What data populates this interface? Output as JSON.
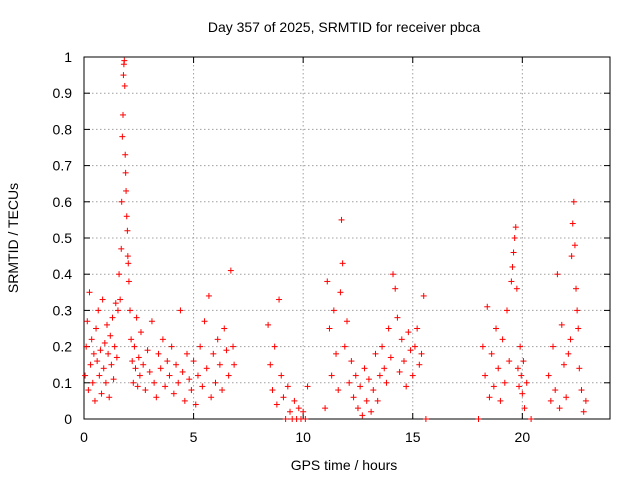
{
  "chart_data": {
    "type": "scatter",
    "title": "Day 357 of 2025, SRMTID for receiver pbca",
    "xlabel": "GPS time / hours",
    "ylabel": "SRMTID / TECUs",
    "xlim": [
      0,
      24
    ],
    "ylim": [
      0,
      1
    ],
    "grid": true,
    "marker": "+",
    "color": "#ff0000",
    "x_ticks": [
      0,
      5,
      10,
      15,
      20
    ],
    "x_tick_labels": [
      "0",
      "5",
      "10",
      "15",
      "20"
    ],
    "y_ticks": [
      0,
      0.1,
      0.2,
      0.3,
      0.4,
      0.5,
      0.6,
      0.7,
      0.8,
      0.9,
      1
    ],
    "y_tick_labels": [
      "0",
      "0.1",
      "0.2",
      "0.3",
      "0.4",
      "0.5",
      "0.6",
      "0.7",
      "0.8",
      "0.9",
      "1"
    ],
    "series": [
      {
        "name": "SRMTID",
        "points": [
          [
            0.05,
            0.12
          ],
          [
            0.1,
            0.2
          ],
          [
            0.15,
            0.27
          ],
          [
            0.2,
            0.08
          ],
          [
            0.25,
            0.35
          ],
          [
            0.3,
            0.15
          ],
          [
            0.35,
            0.22
          ],
          [
            0.4,
            0.1
          ],
          [
            0.45,
            0.18
          ],
          [
            0.5,
            0.05
          ],
          [
            0.55,
            0.25
          ],
          [
            0.6,
            0.16
          ],
          [
            0.65,
            0.3
          ],
          [
            0.7,
            0.12
          ],
          [
            0.75,
            0.19
          ],
          [
            0.8,
            0.07
          ],
          [
            0.85,
            0.33
          ],
          [
            0.9,
            0.14
          ],
          [
            0.95,
            0.21
          ],
          [
            1.0,
            0.1
          ],
          [
            1.05,
            0.26
          ],
          [
            1.1,
            0.18
          ],
          [
            1.15,
            0.06
          ],
          [
            1.2,
            0.23
          ],
          [
            1.25,
            0.15
          ],
          [
            1.3,
            0.28
          ],
          [
            1.35,
            0.11
          ],
          [
            1.4,
            0.2
          ],
          [
            1.45,
            0.32
          ],
          [
            1.5,
            0.17
          ],
          [
            1.55,
            0.3
          ],
          [
            1.6,
            0.4
          ],
          [
            1.65,
            0.33
          ],
          [
            1.7,
            0.47
          ],
          [
            1.72,
            0.6
          ],
          [
            1.75,
            0.78
          ],
          [
            1.78,
            0.84
          ],
          [
            1.8,
            0.95
          ],
          [
            1.82,
            0.98
          ],
          [
            1.84,
            0.99
          ],
          [
            1.86,
            0.92
          ],
          [
            1.88,
            0.73
          ],
          [
            1.9,
            0.68
          ],
          [
            1.92,
            0.63
          ],
          [
            1.95,
            0.56
          ],
          [
            1.98,
            0.52
          ],
          [
            2.0,
            0.45
          ],
          [
            2.02,
            0.43
          ],
          [
            2.05,
            0.38
          ],
          [
            2.1,
            0.3
          ],
          [
            2.15,
            0.22
          ],
          [
            2.2,
            0.16
          ],
          [
            2.25,
            0.1
          ],
          [
            2.3,
            0.2
          ],
          [
            2.35,
            0.14
          ],
          [
            2.4,
            0.28
          ],
          [
            2.45,
            0.09
          ],
          [
            2.5,
            0.17
          ],
          [
            2.55,
            0.12
          ],
          [
            2.6,
            0.24
          ],
          [
            2.7,
            0.15
          ],
          [
            2.8,
            0.08
          ],
          [
            2.9,
            0.19
          ],
          [
            3.0,
            0.13
          ],
          [
            3.1,
            0.27
          ],
          [
            3.2,
            0.1
          ],
          [
            3.3,
            0.06
          ],
          [
            3.4,
            0.18
          ],
          [
            3.5,
            0.14
          ],
          [
            3.6,
            0.22
          ],
          [
            3.7,
            0.09
          ],
          [
            3.8,
            0.16
          ],
          [
            3.9,
            0.12
          ],
          [
            4.0,
            0.2
          ],
          [
            4.1,
            0.07
          ],
          [
            4.2,
            0.15
          ],
          [
            4.3,
            0.1
          ],
          [
            4.4,
            0.3
          ],
          [
            4.5,
            0.13
          ],
          [
            4.6,
            0.05
          ],
          [
            4.7,
            0.18
          ],
          [
            4.8,
            0.11
          ],
          [
            4.9,
            0.08
          ],
          [
            5.0,
            0.16
          ],
          [
            5.1,
            0.04
          ],
          [
            5.2,
            0.12
          ],
          [
            5.3,
            0.2
          ],
          [
            5.4,
            0.09
          ],
          [
            5.5,
            0.27
          ],
          [
            5.6,
            0.14
          ],
          [
            5.7,
            0.34
          ],
          [
            5.8,
            0.06
          ],
          [
            5.9,
            0.18
          ],
          [
            6.0,
            0.1
          ],
          [
            6.1,
            0.22
          ],
          [
            6.2,
            0.15
          ],
          [
            6.3,
            0.08
          ],
          [
            6.4,
            0.25
          ],
          [
            6.5,
            0.19
          ],
          [
            6.6,
            0.12
          ],
          [
            6.7,
            0.41
          ],
          [
            6.8,
            0.2
          ],
          [
            6.85,
            0.15
          ],
          [
            8.4,
            0.26
          ],
          [
            8.5,
            0.15
          ],
          [
            8.6,
            0.08
          ],
          [
            8.7,
            0.2
          ],
          [
            8.8,
            0.04
          ],
          [
            8.9,
            0.33
          ],
          [
            9.0,
            0.12
          ],
          [
            9.1,
            0.06
          ],
          [
            9.2,
            0.0
          ],
          [
            9.3,
            0.09
          ],
          [
            9.4,
            0.02
          ],
          [
            9.5,
            0.0
          ],
          [
            9.6,
            0.05
          ],
          [
            9.7,
            0.0
          ],
          [
            9.8,
            0.03
          ],
          [
            9.9,
            0.0
          ],
          [
            10.0,
            0.02
          ],
          [
            10.1,
            0.0
          ],
          [
            10.2,
            0.09
          ],
          [
            11.0,
            0.03
          ],
          [
            11.1,
            0.38
          ],
          [
            11.2,
            0.25
          ],
          [
            11.3,
            0.12
          ],
          [
            11.4,
            0.3
          ],
          [
            11.5,
            0.18
          ],
          [
            11.6,
            0.08
          ],
          [
            11.7,
            0.35
          ],
          [
            11.75,
            0.55
          ],
          [
            11.8,
            0.43
          ],
          [
            11.9,
            0.2
          ],
          [
            12.0,
            0.27
          ],
          [
            12.1,
            0.1
          ],
          [
            12.2,
            0.16
          ],
          [
            12.3,
            0.06
          ],
          [
            12.4,
            0.12
          ],
          [
            12.5,
            0.03
          ],
          [
            12.6,
            0.09
          ],
          [
            12.7,
            0.01
          ],
          [
            12.8,
            0.14
          ],
          [
            12.9,
            0.05
          ],
          [
            13.0,
            0.11
          ],
          [
            13.1,
            0.02
          ],
          [
            13.2,
            0.08
          ],
          [
            13.3,
            0.18
          ],
          [
            13.4,
            0.05
          ],
          [
            13.5,
            0.12
          ],
          [
            13.6,
            0.2
          ],
          [
            13.7,
            0.14
          ],
          [
            13.8,
            0.1
          ],
          [
            13.9,
            0.25
          ],
          [
            14.0,
            0.17
          ],
          [
            14.1,
            0.4
          ],
          [
            14.2,
            0.36
          ],
          [
            14.3,
            0.28
          ],
          [
            14.4,
            0.13
          ],
          [
            14.5,
            0.22
          ],
          [
            14.6,
            0.16
          ],
          [
            14.7,
            0.09
          ],
          [
            14.8,
            0.24
          ],
          [
            14.9,
            0.19
          ],
          [
            15.0,
            0.12
          ],
          [
            15.1,
            0.2
          ],
          [
            15.2,
            0.25
          ],
          [
            15.3,
            0.15
          ],
          [
            15.4,
            0.18
          ],
          [
            15.5,
            0.34
          ],
          [
            15.6,
            0.0
          ],
          [
            18.0,
            0.0
          ],
          [
            18.2,
            0.2
          ],
          [
            18.3,
            0.12
          ],
          [
            18.4,
            0.31
          ],
          [
            18.5,
            0.06
          ],
          [
            18.6,
            0.18
          ],
          [
            18.7,
            0.09
          ],
          [
            18.8,
            0.25
          ],
          [
            18.9,
            0.14
          ],
          [
            19.0,
            0.05
          ],
          [
            19.1,
            0.22
          ],
          [
            19.2,
            0.1
          ],
          [
            19.3,
            0.3
          ],
          [
            19.4,
            0.16
          ],
          [
            19.5,
            0.38
          ],
          [
            19.55,
            0.42
          ],
          [
            19.6,
            0.46
          ],
          [
            19.65,
            0.5
          ],
          [
            19.7,
            0.53
          ],
          [
            19.75,
            0.36
          ],
          [
            19.8,
            0.14
          ],
          [
            19.85,
            0.09
          ],
          [
            19.9,
            0.2
          ],
          [
            19.95,
            0.12
          ],
          [
            20.0,
            0.07
          ],
          [
            20.05,
            0.16
          ],
          [
            20.1,
            0.03
          ],
          [
            20.2,
            0.1
          ],
          [
            20.4,
            0.0
          ],
          [
            21.2,
            0.12
          ],
          [
            21.3,
            0.05
          ],
          [
            21.4,
            0.2
          ],
          [
            21.5,
            0.08
          ],
          [
            21.6,
            0.4
          ],
          [
            21.7,
            0.03
          ],
          [
            21.8,
            0.26
          ],
          [
            21.9,
            0.15
          ],
          [
            22.0,
            0.06
          ],
          [
            22.1,
            0.18
          ],
          [
            22.2,
            0.22
          ],
          [
            22.25,
            0.45
          ],
          [
            22.3,
            0.54
          ],
          [
            22.35,
            0.6
          ],
          [
            22.4,
            0.48
          ],
          [
            22.45,
            0.36
          ],
          [
            22.5,
            0.3
          ],
          [
            22.55,
            0.25
          ],
          [
            22.6,
            0.14
          ],
          [
            22.7,
            0.08
          ],
          [
            22.8,
            0.02
          ],
          [
            22.9,
            0.05
          ]
        ]
      }
    ]
  }
}
